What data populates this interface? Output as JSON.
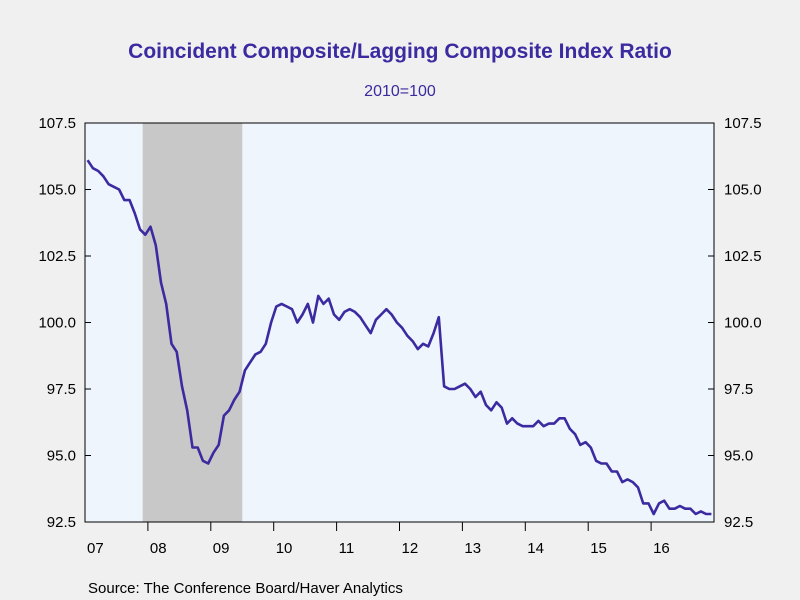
{
  "chart_data": {
    "type": "line",
    "title": "Coincident Composite/Lagging Composite Index Ratio",
    "subtitle": "2010=100",
    "source": "Source:  The Conference Board/Haver Analytics",
    "title_color": "#3b2aa0",
    "line_color": "#3b2aa0",
    "plot_bg": "#eef5fd",
    "recession_color": "#c8c8c8",
    "ylim": [
      92.5,
      107.5
    ],
    "y_ticks": [
      "107.5",
      "105.0",
      "102.5",
      "100.0",
      "97.5",
      "95.0",
      "92.5"
    ],
    "x_range": [
      "2007-01",
      "2016-12"
    ],
    "x_ticks": [
      "07",
      "08",
      "09",
      "10",
      "11",
      "12",
      "13",
      "14",
      "15",
      "16"
    ],
    "recession": {
      "start": "2007-12",
      "end": "2009-06"
    },
    "series": [
      {
        "x": [
          "2007-01",
          "2007-02",
          "2007-03",
          "2007-04",
          "2007-05",
          "2007-06",
          "2007-07",
          "2007-08",
          "2007-09",
          "2007-10",
          "2007-11",
          "2007-12",
          "2008-01",
          "2008-02",
          "2008-03",
          "2008-04",
          "2008-05",
          "2008-06",
          "2008-07",
          "2008-08",
          "2008-09",
          "2008-10",
          "2008-11",
          "2008-12",
          "2009-01",
          "2009-02",
          "2009-03",
          "2009-04",
          "2009-05",
          "2009-06",
          "2009-07",
          "2009-08",
          "2009-09",
          "2009-10",
          "2009-11",
          "2009-12",
          "2010-01",
          "2010-02",
          "2010-03",
          "2010-04",
          "2010-05",
          "2010-06",
          "2010-07",
          "2010-08",
          "2010-09",
          "2010-10",
          "2010-11",
          "2010-12",
          "2011-01",
          "2011-02",
          "2011-03",
          "2011-04",
          "2011-05",
          "2011-06",
          "2011-07",
          "2011-08",
          "2011-09",
          "2011-10",
          "2011-11",
          "2011-12",
          "2012-01",
          "2012-02",
          "2012-03",
          "2012-04",
          "2012-05",
          "2012-06",
          "2012-07",
          "2012-08",
          "2012-09",
          "2012-10",
          "2012-11",
          "2012-12",
          "2013-01",
          "2013-02",
          "2013-03",
          "2013-04",
          "2013-05",
          "2013-06",
          "2013-07",
          "2013-08",
          "2013-09",
          "2013-10",
          "2013-11",
          "2013-12",
          "2014-01",
          "2014-02",
          "2014-03",
          "2014-04",
          "2014-05",
          "2014-06",
          "2014-07",
          "2014-08",
          "2014-09",
          "2014-10",
          "2014-11",
          "2014-12",
          "2015-01",
          "2015-02",
          "2015-03",
          "2015-04",
          "2015-05",
          "2015-06",
          "2015-07",
          "2015-08",
          "2015-09",
          "2015-10",
          "2015-11",
          "2015-12",
          "2016-01",
          "2016-02",
          "2016-03",
          "2016-04",
          "2016-05",
          "2016-06",
          "2016-07",
          "2016-08",
          "2016-09",
          "2016-10",
          "2016-11",
          "2016-12"
        ],
        "values": [
          106.1,
          105.8,
          105.7,
          105.5,
          105.2,
          105.1,
          105.0,
          104.6,
          104.6,
          104.1,
          103.5,
          103.3,
          103.6,
          102.9,
          101.5,
          100.7,
          99.2,
          98.9,
          97.6,
          96.7,
          95.3,
          95.3,
          94.8,
          94.7,
          95.1,
          95.4,
          96.5,
          96.7,
          97.1,
          97.4,
          98.2,
          98.5,
          98.8,
          98.9,
          99.2,
          100.0,
          100.6,
          100.7,
          100.6,
          100.5,
          100.0,
          100.3,
          100.7,
          100.0,
          101.0,
          100.7,
          100.9,
          100.3,
          100.1,
          100.4,
          100.5,
          100.4,
          100.2,
          99.9,
          99.6,
          100.1,
          100.3,
          100.5,
          100.3,
          100.0,
          99.8,
          99.5,
          99.3,
          99.0,
          99.2,
          99.1,
          99.6,
          100.2,
          97.6,
          97.5,
          97.5,
          97.6,
          97.7,
          97.5,
          97.2,
          97.4,
          96.9,
          96.7,
          97.0,
          96.8,
          96.2,
          96.4,
          96.2,
          96.1,
          96.1,
          96.1,
          96.3,
          96.1,
          96.2,
          96.2,
          96.4,
          96.4,
          96.0,
          95.8,
          95.4,
          95.5,
          95.3,
          94.8,
          94.7,
          94.7,
          94.4,
          94.4,
          94.0,
          94.1,
          94.0,
          93.8,
          93.2,
          93.2,
          92.8,
          93.2,
          93.3,
          93.0,
          93.0,
          93.1,
          93.0,
          93.0,
          92.8,
          92.9,
          92.8,
          92.8
        ]
      }
    ]
  }
}
